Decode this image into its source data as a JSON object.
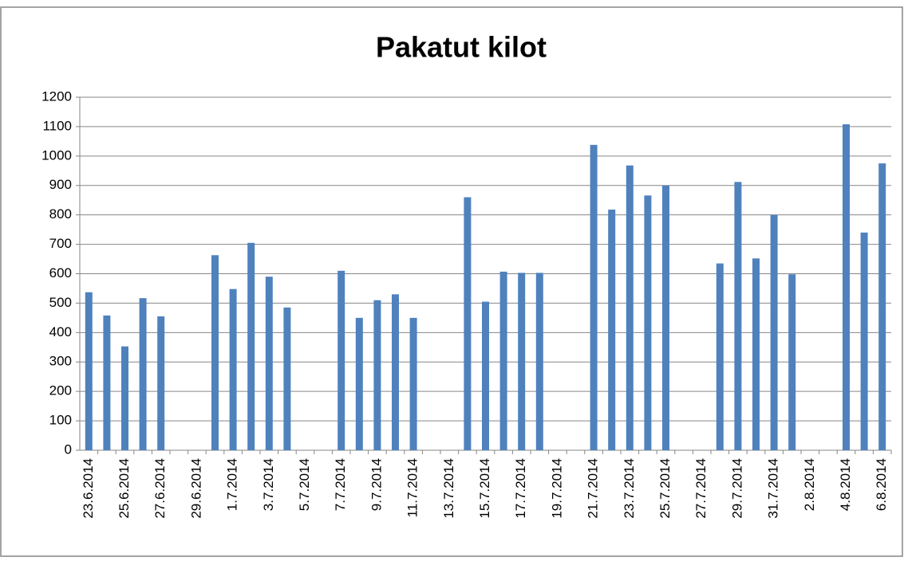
{
  "chart_data": {
    "type": "bar",
    "title": "Pakatut kilot",
    "categories": [
      "23.6.2014",
      null,
      "25.6.2014",
      null,
      "27.6.2014",
      null,
      "29.6.2014",
      null,
      "1.7.2014",
      null,
      "3.7.2014",
      null,
      "5.7.2014",
      null,
      "7.7.2014",
      null,
      "9.7.2014",
      null,
      "11.7.2014",
      null,
      "13.7.2014",
      null,
      "15.7.2014",
      null,
      "17.7.2014",
      null,
      "19.7.2014",
      null,
      "21.7.2014",
      null,
      "23.7.2014",
      null,
      "25.7.2014",
      null,
      "27.7.2014",
      null,
      "29.7.2014",
      null,
      "31.7.2014",
      null,
      "2.8.2014",
      null,
      "4.8.2014",
      null,
      "6.8.2014"
    ],
    "values": [
      537,
      458,
      353,
      517,
      455,
      null,
      null,
      663,
      548,
      705,
      590,
      485,
      null,
      null,
      610,
      450,
      510,
      530,
      450,
      null,
      null,
      860,
      505,
      607,
      603,
      603,
      null,
      null,
      1038,
      818,
      968,
      866,
      900,
      null,
      null,
      635,
      912,
      652,
      800,
      598,
      null,
      null,
      1108,
      740,
      975
    ],
    "color": "#4f81bd",
    "ylim": [
      0,
      1200
    ],
    "yticks": [
      0,
      100,
      200,
      300,
      400,
      500,
      600,
      700,
      800,
      900,
      1000,
      1100,
      1200
    ],
    "grid": true
  }
}
